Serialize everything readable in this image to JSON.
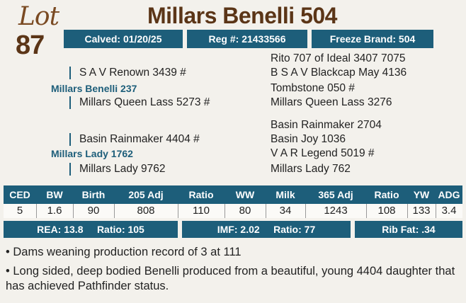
{
  "lot": {
    "word": "Lot",
    "number": "87"
  },
  "title": "Millars Benelli 504",
  "info_bar": {
    "calved": "Calved: 01/20/25",
    "reg": "Reg #: 21433566",
    "freeze": "Freeze Brand: 504"
  },
  "pedigree": {
    "sire": "Millars Benelli 237",
    "sire_sire": "S A V Renown 3439 #",
    "sire_dam": "Millars Queen Lass 5273 #",
    "sss": "Rito 707 of Ideal 3407 7075",
    "ssd": "B S A V Blackcap May 4136",
    "sds": "Tombstone 050 #",
    "sdd": "Millars Queen Lass 3276",
    "dam": "Millars Lady 1762",
    "dam_sire": "Basin Rainmaker 4404 #",
    "dam_dam": "Millars Lady 9762",
    "dss": "Basin Rainmaker 2704",
    "dsd": "Basin Joy 1036",
    "dds": "V A R Legend 5019 #",
    "ddd": "Millars Lady 762"
  },
  "stats": {
    "headers": [
      "CED",
      "BW",
      "Birth",
      "205 Adj",
      "Ratio",
      "WW",
      "Milk",
      "365 Adj",
      "Ratio",
      "YW",
      "ADG"
    ],
    "values": [
      "5",
      "1.6",
      "90",
      "808",
      "110",
      "80",
      "34",
      "1243",
      "108",
      "133",
      "3.4"
    ]
  },
  "carcass": {
    "rea": "REA: 13.8",
    "rea_ratio": "Ratio: 105",
    "imf": "IMF: 2.02",
    "imf_ratio": "Ratio: 77",
    "ribfat": "Rib Fat: .34"
  },
  "notes": [
    "• Dams weaning production record of 3 at 111",
    "• Long sided, deep bodied Benelli produced from a beautiful, young 4404 daughter that has achieved Pathfinder status."
  ]
}
